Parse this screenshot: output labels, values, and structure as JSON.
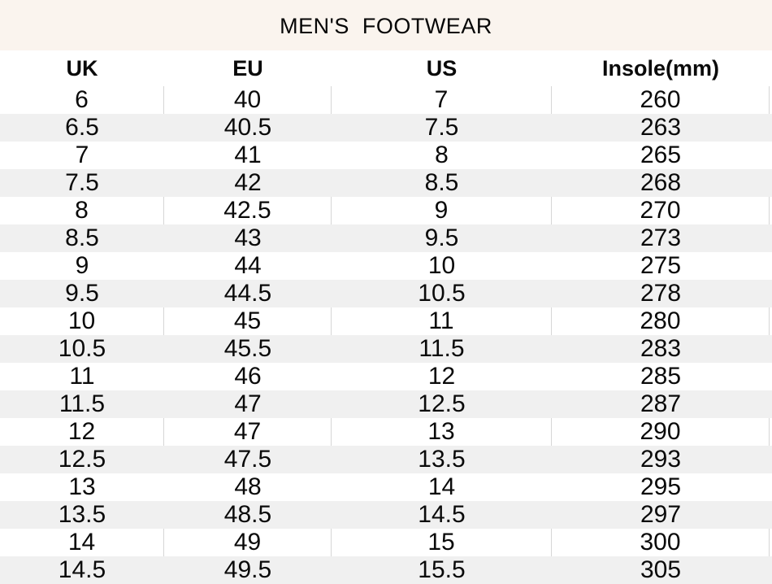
{
  "title": "MEN'S  FOOTWEAR",
  "colors": {
    "title_band_bg": "#faf4ee",
    "stripe_bg": "#f0f0f0",
    "separator_line": "#d6d6d6",
    "text": "#0a0a0a"
  },
  "table": {
    "columns": [
      "UK",
      "EU",
      "US",
      "Insole(mm)"
    ],
    "rows": [
      [
        "6",
        "40",
        "7",
        "260"
      ],
      [
        "6.5",
        "40.5",
        "7.5",
        "263"
      ],
      [
        "7",
        "41",
        "8",
        "265"
      ],
      [
        "7.5",
        "42",
        "8.5",
        "268"
      ],
      [
        "8",
        "42.5",
        "9",
        "270"
      ],
      [
        "8.5",
        "43",
        "9.5",
        "273"
      ],
      [
        "9",
        "44",
        "10",
        "275"
      ],
      [
        "9.5",
        "44.5",
        "10.5",
        "278"
      ],
      [
        "10",
        "45",
        "11",
        "280"
      ],
      [
        "10.5",
        "45.5",
        "11.5",
        "283"
      ],
      [
        "11",
        "46",
        "12",
        "285"
      ],
      [
        "11.5",
        "47",
        "12.5",
        "287"
      ],
      [
        "12",
        "47",
        "13",
        "290"
      ],
      [
        "12.5",
        "47.5",
        "13.5",
        "293"
      ],
      [
        "13",
        "48",
        "14",
        "295"
      ],
      [
        "13.5",
        "48.5",
        "14.5",
        "297"
      ],
      [
        "14",
        "49",
        "15",
        "300"
      ],
      [
        "14.5",
        "49.5",
        "15.5",
        "305"
      ]
    ]
  }
}
